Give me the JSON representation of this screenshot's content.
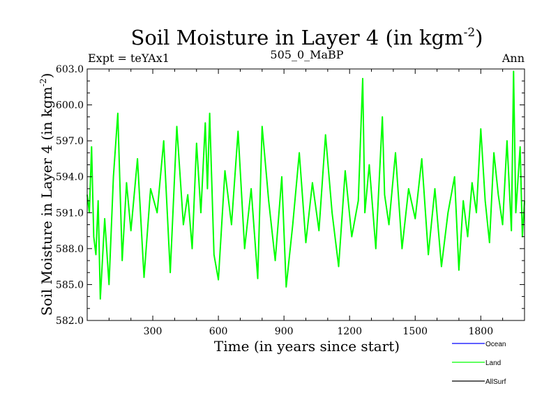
{
  "chart_data": {
    "type": "line",
    "title": "Soil Moisture in Layer 4 (in kgm",
    "title_superscript": "-2",
    "title_close": ")",
    "subtitle_left": "Expt = teYAx1",
    "subtitle_center": "505_0_MaBP",
    "subtitle_right": "Ann",
    "xlabel": "Time (in years since start)",
    "ylabel": "Soil Moisture in Layer 4 (in kgm",
    "ylabel_superscript": "-2",
    "ylabel_close": ")",
    "xlim": [
      0,
      2000
    ],
    "ylim": [
      582.0,
      603.0
    ],
    "x_ticks": [
      300,
      600,
      900,
      1200,
      1500,
      1800
    ],
    "x_tick_labels": [
      "300",
      "600",
      "900",
      "1200",
      "1500",
      "1800"
    ],
    "y_ticks": [
      582.0,
      585.0,
      588.0,
      591.0,
      594.0,
      597.0,
      600.0,
      603.0
    ],
    "y_tick_labels": [
      "582.0",
      "585.0",
      "588.0",
      "591.0",
      "594.0",
      "597.0",
      "600.0",
      "603.0"
    ],
    "legend": [
      {
        "name": "Ocean",
        "color": "#0000ff"
      },
      {
        "name": "Land",
        "color": "#00ff00"
      },
      {
        "name": "AllSurf",
        "color": "#000000"
      }
    ],
    "series": [
      {
        "name": "Land",
        "color": "#00ff00",
        "x": [
          0,
          10,
          20,
          30,
          40,
          50,
          60,
          80,
          100,
          120,
          140,
          160,
          180,
          200,
          230,
          260,
          290,
          320,
          350,
          380,
          410,
          440,
          460,
          480,
          500,
          520,
          540,
          550,
          560,
          580,
          600,
          630,
          660,
          690,
          720,
          750,
          780,
          800,
          830,
          860,
          890,
          910,
          940,
          970,
          1000,
          1030,
          1060,
          1090,
          1120,
          1150,
          1180,
          1210,
          1240,
          1260,
          1270,
          1290,
          1320,
          1350,
          1360,
          1380,
          1410,
          1440,
          1470,
          1500,
          1530,
          1560,
          1590,
          1620,
          1650,
          1680,
          1700,
          1720,
          1740,
          1760,
          1780,
          1800,
          1820,
          1840,
          1860,
          1880,
          1900,
          1920,
          1940,
          1950,
          1960,
          1980,
          1990,
          2000
        ],
        "values": [
          592.5,
          591.0,
          596.5,
          589.0,
          587.5,
          592.0,
          583.8,
          590.5,
          585.0,
          594.0,
          599.3,
          587.0,
          593.5,
          589.5,
          595.5,
          585.6,
          593.0,
          591.0,
          597.0,
          586.0,
          598.2,
          590.0,
          592.5,
          588.0,
          596.8,
          591.0,
          598.5,
          593.0,
          599.3,
          587.5,
          585.4,
          594.5,
          590.0,
          597.8,
          588.0,
          593.0,
          585.5,
          598.2,
          592.0,
          587.0,
          594.0,
          584.8,
          590.0,
          596.0,
          588.5,
          593.5,
          589.5,
          597.5,
          591.0,
          586.5,
          594.5,
          589.0,
          592.0,
          602.2,
          591.0,
          595.0,
          588.0,
          599.0,
          592.5,
          590.0,
          596.0,
          588.0,
          593.0,
          590.5,
          595.5,
          587.5,
          593.0,
          586.5,
          591.0,
          594.0,
          586.2,
          592.0,
          589.0,
          593.5,
          591.0,
          598.0,
          592.0,
          588.5,
          596.0,
          592.5,
          590.0,
          597.0,
          589.5,
          602.8,
          591.0,
          596.5,
          589.0,
          592.0
        ]
      }
    ]
  }
}
